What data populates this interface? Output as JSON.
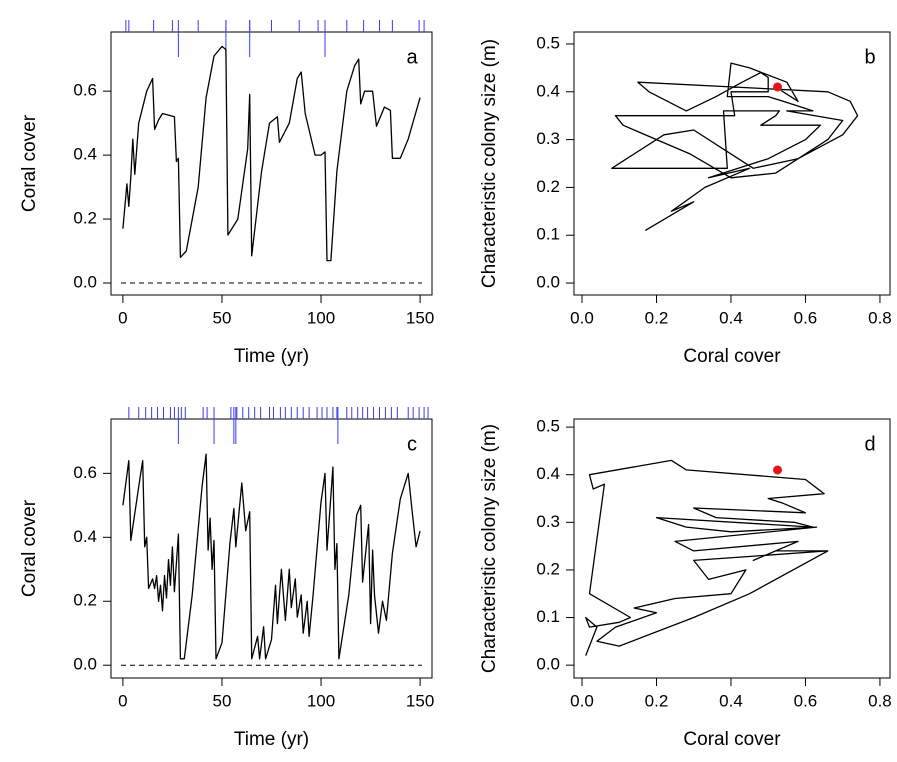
{
  "chart_data": [
    {
      "type": "line",
      "panel_label": "a",
      "xlabel": "Time (yr)",
      "ylabel": "Coral cover",
      "color": "#000000",
      "xlim": [
        -6,
        156
      ],
      "ylim": [
        -0.0375,
        0.785
      ],
      "xticks": [
        0,
        50,
        100,
        150
      ],
      "yticks": [
        {
          "value": 0,
          "label": "0.0"
        },
        0.2,
        0.4,
        0.6
      ],
      "hline": 0,
      "hline_style": "dashed",
      "event_color": "#3b3bf0",
      "events": [
        1.5,
        3,
        15.5,
        25,
        38,
        52,
        64,
        75,
        89,
        98.5,
        102,
        113,
        121.5,
        129.5,
        136,
        149.5,
        152
      ],
      "major_events": [
        28,
        52,
        64,
        102
      ],
      "x": [
        0,
        2,
        3,
        4,
        5,
        6,
        8,
        12,
        15,
        16,
        18,
        20,
        26,
        27,
        28,
        29,
        32,
        38,
        42,
        46,
        50,
        52,
        53,
        58,
        63,
        64,
        65,
        70,
        74,
        78,
        79,
        84,
        88,
        90,
        92,
        97,
        100,
        102,
        103,
        105,
        108,
        113,
        117,
        119,
        120,
        122,
        126,
        128,
        132,
        135,
        136,
        140,
        144,
        150
      ],
      "values": [
        0.17,
        0.31,
        0.24,
        0.33,
        0.45,
        0.34,
        0.5,
        0.6,
        0.64,
        0.48,
        0.51,
        0.53,
        0.52,
        0.38,
        0.39,
        0.08,
        0.1,
        0.3,
        0.58,
        0.71,
        0.74,
        0.73,
        0.15,
        0.2,
        0.42,
        0.59,
        0.085,
        0.35,
        0.5,
        0.52,
        0.44,
        0.5,
        0.64,
        0.66,
        0.53,
        0.4,
        0.4,
        0.41,
        0.07,
        0.07,
        0.35,
        0.6,
        0.68,
        0.7,
        0.56,
        0.6,
        0.6,
        0.49,
        0.55,
        0.54,
        0.39,
        0.39,
        0.45,
        0.58
      ]
    },
    {
      "type": "phase",
      "panel_label": "b",
      "xlabel": "Coral cover",
      "ylabel": "Characteristic colony size (m)",
      "color": "#000000",
      "xlim": [
        -0.0215,
        0.827
      ],
      "ylim": [
        -0.025,
        0.525
      ],
      "xticks": [
        {
          "value": 0,
          "label": "0.0"
        },
        0.2,
        0.4,
        0.6,
        0.8
      ],
      "yticks": [
        {
          "value": 0,
          "label": "0.0"
        },
        0.1,
        0.2,
        0.3,
        0.4,
        0.5
      ],
      "point": {
        "x": 0.525,
        "y": 0.41,
        "color": "#e8141c"
      },
      "x": [
        0.17,
        0.3,
        0.24,
        0.33,
        0.45,
        0.34,
        0.5,
        0.6,
        0.64,
        0.48,
        0.52,
        0.53,
        0.38,
        0.39,
        0.08,
        0.12,
        0.22,
        0.3,
        0.38,
        0.46,
        0.58,
        0.7,
        0.74,
        0.72,
        0.66,
        0.15,
        0.18,
        0.28,
        0.36,
        0.43,
        0.48,
        0.5,
        0.5,
        0.4,
        0.41,
        0.09,
        0.11,
        0.2,
        0.29,
        0.4,
        0.52,
        0.6,
        0.66,
        0.7,
        0.55,
        0.62,
        0.54,
        0.5,
        0.39,
        0.4,
        0.45,
        0.55,
        0.58,
        0.52
      ],
      "values": [
        0.11,
        0.17,
        0.15,
        0.2,
        0.24,
        0.22,
        0.26,
        0.3,
        0.33,
        0.33,
        0.35,
        0.36,
        0.36,
        0.24,
        0.24,
        0.26,
        0.31,
        0.32,
        0.28,
        0.24,
        0.26,
        0.31,
        0.35,
        0.38,
        0.4,
        0.42,
        0.4,
        0.36,
        0.39,
        0.42,
        0.44,
        0.43,
        0.4,
        0.4,
        0.35,
        0.35,
        0.33,
        0.3,
        0.27,
        0.22,
        0.23,
        0.27,
        0.3,
        0.34,
        0.36,
        0.36,
        0.38,
        0.39,
        0.39,
        0.46,
        0.45,
        0.42,
        0.38,
        0.41
      ]
    },
    {
      "type": "line",
      "panel_label": "c",
      "xlabel": "Time (yr)",
      "ylabel": "Coral cover",
      "color": "#000000",
      "xlim": [
        -6,
        156
      ],
      "ylim": [
        -0.04,
        0.77
      ],
      "xticks": [
        0,
        50,
        100,
        150
      ],
      "yticks": [
        {
          "value": 0,
          "label": "0.0"
        },
        0.2,
        0.4,
        0.6
      ],
      "hline": 0,
      "hline_style": "dashed",
      "event_color": "#3b3bf0",
      "events": [
        3,
        8,
        11.5,
        14.5,
        17.5,
        20.5,
        24,
        26,
        29.5,
        31.5,
        40.5,
        42.5,
        54.5,
        57.5,
        60.5,
        63.5,
        66.5,
        69.5,
        74,
        76,
        79.5,
        82,
        85,
        88,
        91,
        94,
        98,
        100.5,
        103,
        106,
        108,
        113,
        115.5,
        118.5,
        121,
        123.5,
        126.5,
        129.5,
        132.5,
        135.5,
        138.5,
        144,
        146.5,
        149.5,
        152,
        154
      ],
      "major_events": [
        28,
        46,
        56,
        57,
        108.5
      ],
      "x": [
        0,
        3,
        4,
        9,
        10,
        11,
        12,
        13,
        15,
        16,
        17,
        18,
        19,
        20,
        21,
        22,
        23,
        24,
        25,
        26,
        28,
        29,
        31,
        35,
        40,
        42,
        43,
        44,
        45,
        46,
        47,
        50,
        54,
        56,
        57,
        60,
        62,
        64,
        65,
        68,
        69,
        71,
        72,
        75,
        77,
        78,
        80,
        82,
        84,
        85,
        87,
        88,
        90,
        91,
        93,
        94,
        96,
        100,
        102,
        103,
        105,
        106,
        107,
        108,
        109,
        114,
        118,
        120,
        121,
        124,
        125,
        126,
        127,
        128,
        129,
        131,
        133,
        136,
        140,
        144,
        146,
        148,
        150
      ],
      "values": [
        0.5,
        0.64,
        0.39,
        0.6,
        0.64,
        0.37,
        0.4,
        0.24,
        0.27,
        0.24,
        0.28,
        0.2,
        0.25,
        0.17,
        0.28,
        0.21,
        0.33,
        0.25,
        0.37,
        0.23,
        0.41,
        0.02,
        0.02,
        0.22,
        0.56,
        0.66,
        0.36,
        0.46,
        0.3,
        0.39,
        0.02,
        0.07,
        0.38,
        0.49,
        0.37,
        0.57,
        0.42,
        0.48,
        0.02,
        0.09,
        0.02,
        0.12,
        0.02,
        0.08,
        0.25,
        0.13,
        0.3,
        0.14,
        0.3,
        0.18,
        0.27,
        0.15,
        0.22,
        0.1,
        0.2,
        0.09,
        0.22,
        0.51,
        0.6,
        0.36,
        0.53,
        0.62,
        0.3,
        0.38,
        0.02,
        0.22,
        0.47,
        0.5,
        0.26,
        0.44,
        0.13,
        0.36,
        0.22,
        0.16,
        0.1,
        0.2,
        0.14,
        0.35,
        0.52,
        0.6,
        0.48,
        0.37,
        0.42
      ]
    },
    {
      "type": "phase",
      "panel_label": "d",
      "xlabel": "Coral cover",
      "ylabel": "Characteristic colony size (m)",
      "color": "#000000",
      "xlim": [
        -0.0215,
        0.827
      ],
      "ylim": [
        -0.027,
        0.517
      ],
      "xticks": [
        {
          "value": 0,
          "label": "0.0"
        },
        0.2,
        0.4,
        0.6,
        0.8
      ],
      "yticks": [
        {
          "value": 0,
          "label": "0.0"
        },
        0.1,
        0.2,
        0.3,
        0.4,
        0.5
      ],
      "point": {
        "x": 0.525,
        "y": 0.41,
        "color": "#e8141c"
      },
      "x": [
        0.01,
        0.04,
        0.01,
        0.02,
        0.1,
        0.13,
        0.02,
        0.06,
        0.03,
        0.02,
        0.24,
        0.28,
        0.6,
        0.65,
        0.5,
        0.54,
        0.6,
        0.3,
        0.36,
        0.57,
        0.62,
        0.2,
        0.28,
        0.4,
        0.63,
        0.25,
        0.3,
        0.58,
        0.46,
        0.52,
        0.66,
        0.3,
        0.34,
        0.44,
        0.4,
        0.25,
        0.14,
        0.2,
        0.09,
        0.04,
        0.1,
        0.3,
        0.45,
        0.66
      ],
      "values": [
        0.02,
        0.08,
        0.1,
        0.08,
        0.09,
        0.1,
        0.15,
        0.38,
        0.37,
        0.4,
        0.43,
        0.41,
        0.39,
        0.36,
        0.35,
        0.34,
        0.32,
        0.33,
        0.31,
        0.3,
        0.29,
        0.31,
        0.29,
        0.28,
        0.29,
        0.26,
        0.24,
        0.26,
        0.22,
        0.24,
        0.24,
        0.22,
        0.18,
        0.2,
        0.15,
        0.14,
        0.12,
        0.11,
        0.08,
        0.05,
        0.04,
        0.1,
        0.15,
        0.24
      ]
    }
  ]
}
